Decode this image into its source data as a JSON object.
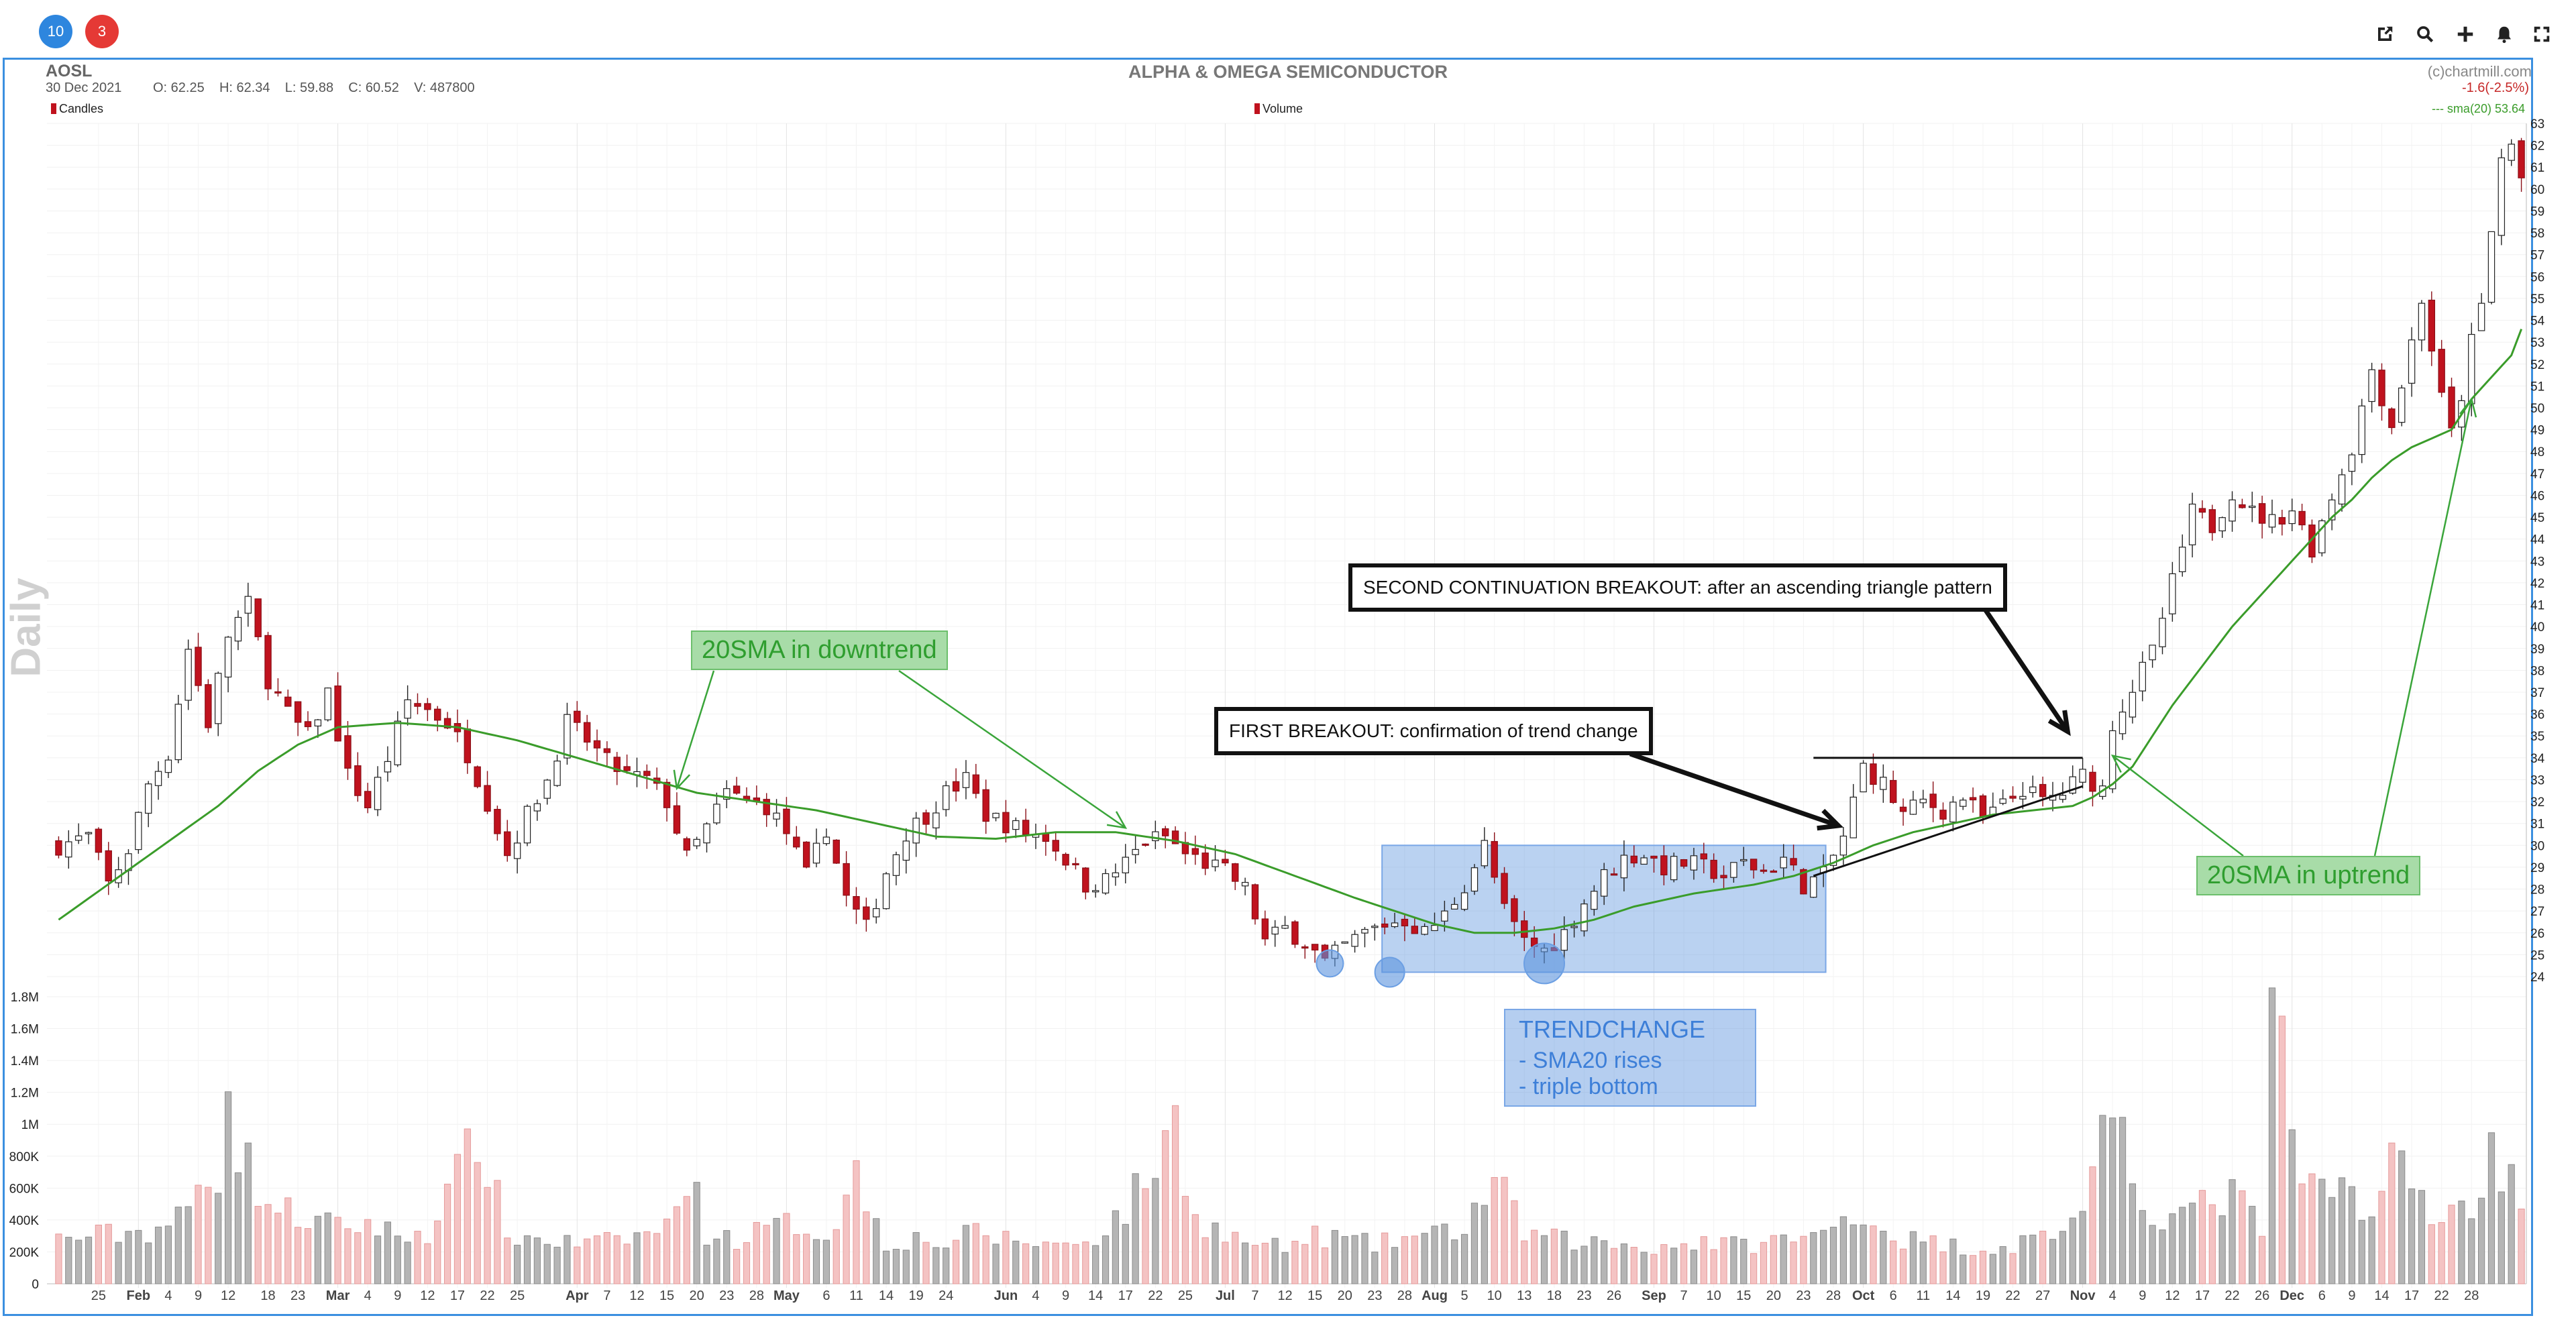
{
  "toolbar": {
    "badges": [
      {
        "label": "10",
        "color": "#2e86de"
      },
      {
        "label": "3",
        "color": "#e53935"
      }
    ],
    "icons": [
      "external-link-icon",
      "search-icon",
      "plus-icon",
      "bell-icon",
      "fullscreen-icon"
    ]
  },
  "header": {
    "symbol": "AOSL",
    "date": "30 Dec 2021",
    "ohlcv": "O: 62.25    H: 62.34    L: 59.88    C: 60.52    V: 487800",
    "title": "ALPHA & OMEGA SEMICONDUCTOR",
    "copyright": "(c)chartmill.com",
    "change": "-1.6(-2.5%)",
    "candles_label": "Candles",
    "volume_label": "Volume",
    "sma_label": "--- sma(20) 53.64",
    "period_label": "Daily"
  },
  "colors": {
    "up": "#ffffff",
    "down": "#c0121e",
    "sma": "#3a9c2a",
    "annotation_green": "#3aa53a",
    "trendchange": "#5a93dd"
  },
  "annotations": {
    "sma_down": "20SMA in downtrend",
    "sma_up": "20SMA in uptrend",
    "first_breakout": "FIRST BREAKOUT: confirmation of trend change",
    "second_breakout": "SECOND CONTINUATION BREAKOUT: after an ascending triangle pattern",
    "trendchange_title": "TRENDCHANGE",
    "trendchange_l1": "- SMA20 rises",
    "trendchange_l2": "- triple bottom"
  },
  "chart_data": {
    "type": "candlestick",
    "price_ylim": [
      24,
      63
    ],
    "price_ticks": [
      24,
      25,
      26,
      27,
      28,
      29,
      30,
      31,
      32,
      33,
      34,
      35,
      36,
      37,
      38,
      39,
      40,
      41,
      42,
      43,
      44,
      45,
      46,
      47,
      48,
      49,
      50,
      51,
      52,
      53,
      54,
      55,
      56,
      57,
      58,
      59,
      60,
      61,
      62,
      63
    ],
    "volume_ylim": [
      0,
      1800000
    ],
    "volume_ticks": [
      {
        "v": 0,
        "label": "0"
      },
      {
        "v": 200000,
        "label": "200K"
      },
      {
        "v": 400000,
        "label": "400K"
      },
      {
        "v": 600000,
        "label": "600K"
      },
      {
        "v": 800000,
        "label": "800K"
      },
      {
        "v": 1000000,
        "label": "1M"
      },
      {
        "v": 1200000,
        "label": "1.2M"
      },
      {
        "v": 1400000,
        "label": "1.4M"
      },
      {
        "v": 1600000,
        "label": "1.6M"
      },
      {
        "v": 1800000,
        "label": "1.8M"
      }
    ],
    "x_labels": [
      {
        "t": "25",
        "i": 4
      },
      {
        "t": "Feb",
        "i": 8,
        "m": true
      },
      {
        "t": "4",
        "i": 11
      },
      {
        "t": "9",
        "i": 14
      },
      {
        "t": "12",
        "i": 17
      },
      {
        "t": "18",
        "i": 21
      },
      {
        "t": "23",
        "i": 24
      },
      {
        "t": "Mar",
        "i": 28,
        "m": true
      },
      {
        "t": "4",
        "i": 31
      },
      {
        "t": "9",
        "i": 34
      },
      {
        "t": "12",
        "i": 37
      },
      {
        "t": "17",
        "i": 40
      },
      {
        "t": "22",
        "i": 43
      },
      {
        "t": "25",
        "i": 46
      },
      {
        "t": "Apr",
        "i": 52,
        "m": true
      },
      {
        "t": "7",
        "i": 55
      },
      {
        "t": "12",
        "i": 58
      },
      {
        "t": "15",
        "i": 61
      },
      {
        "t": "20",
        "i": 64
      },
      {
        "t": "23",
        "i": 67
      },
      {
        "t": "28",
        "i": 70
      },
      {
        "t": "May",
        "i": 73,
        "m": true
      },
      {
        "t": "6",
        "i": 77
      },
      {
        "t": "11",
        "i": 80
      },
      {
        "t": "14",
        "i": 83
      },
      {
        "t": "19",
        "i": 86
      },
      {
        "t": "24",
        "i": 89
      },
      {
        "t": "Jun",
        "i": 95,
        "m": true
      },
      {
        "t": "4",
        "i": 98
      },
      {
        "t": "9",
        "i": 101
      },
      {
        "t": "14",
        "i": 104
      },
      {
        "t": "17",
        "i": 107
      },
      {
        "t": "22",
        "i": 110
      },
      {
        "t": "25",
        "i": 113
      },
      {
        "t": "Jul",
        "i": 117,
        "m": true
      },
      {
        "t": "7",
        "i": 120
      },
      {
        "t": "12",
        "i": 123
      },
      {
        "t": "15",
        "i": 126
      },
      {
        "t": "20",
        "i": 129
      },
      {
        "t": "23",
        "i": 132
      },
      {
        "t": "28",
        "i": 135
      },
      {
        "t": "Aug",
        "i": 138,
        "m": true
      },
      {
        "t": "5",
        "i": 141
      },
      {
        "t": "10",
        "i": 144
      },
      {
        "t": "13",
        "i": 147
      },
      {
        "t": "18",
        "i": 150
      },
      {
        "t": "23",
        "i": 153
      },
      {
        "t": "26",
        "i": 156
      },
      {
        "t": "Sep",
        "i": 160,
        "m": true
      },
      {
        "t": "7",
        "i": 163
      },
      {
        "t": "10",
        "i": 166
      },
      {
        "t": "15",
        "i": 169
      },
      {
        "t": "20",
        "i": 172
      },
      {
        "t": "23",
        "i": 175
      },
      {
        "t": "28",
        "i": 178
      },
      {
        "t": "Oct",
        "i": 181,
        "m": true
      },
      {
        "t": "6",
        "i": 184
      },
      {
        "t": "11",
        "i": 187
      },
      {
        "t": "14",
        "i": 190
      },
      {
        "t": "19",
        "i": 193
      },
      {
        "t": "22",
        "i": 196
      },
      {
        "t": "27",
        "i": 199
      },
      {
        "t": "Nov",
        "i": 203,
        "m": true
      },
      {
        "t": "4",
        "i": 206
      },
      {
        "t": "9",
        "i": 209
      },
      {
        "t": "12",
        "i": 212
      },
      {
        "t": "17",
        "i": 215
      },
      {
        "t": "22",
        "i": 218
      },
      {
        "t": "26",
        "i": 221
      },
      {
        "t": "Dec",
        "i": 224,
        "m": true
      },
      {
        "t": "6",
        "i": 227
      },
      {
        "t": "9",
        "i": 230
      },
      {
        "t": "14",
        "i": 233
      },
      {
        "t": "17",
        "i": 236
      },
      {
        "t": "22",
        "i": 239
      },
      {
        "t": "28",
        "i": 242
      }
    ],
    "close_path": [
      [
        0,
        30.0
      ],
      [
        3,
        30.4
      ],
      [
        5,
        28.2
      ],
      [
        7,
        29.8
      ],
      [
        9,
        32.8
      ],
      [
        11,
        34.2
      ],
      [
        13,
        39.0
      ],
      [
        15,
        35.6
      ],
      [
        17,
        39.6
      ],
      [
        19,
        41.0
      ],
      [
        21,
        37.6
      ],
      [
        23,
        36.0
      ],
      [
        25,
        35.0
      ],
      [
        27,
        37.0
      ],
      [
        29,
        33.2
      ],
      [
        31,
        31.8
      ],
      [
        33,
        34.0
      ],
      [
        35,
        36.6
      ],
      [
        37,
        36.2
      ],
      [
        39,
        35.6
      ],
      [
        41,
        34.2
      ],
      [
        43,
        32.0
      ],
      [
        45,
        29.6
      ],
      [
        47,
        31.4
      ],
      [
        49,
        33.0
      ],
      [
        51,
        35.6
      ],
      [
        53,
        34.8
      ],
      [
        55,
        33.8
      ],
      [
        57,
        33.2
      ],
      [
        59,
        33.0
      ],
      [
        61,
        32.0
      ],
      [
        63,
        29.4
      ],
      [
        65,
        30.8
      ],
      [
        67,
        32.4
      ],
      [
        69,
        32.0
      ],
      [
        71,
        31.8
      ],
      [
        73,
        30.6
      ],
      [
        75,
        28.6
      ],
      [
        77,
        30.8
      ],
      [
        79,
        27.6
      ],
      [
        81,
        26.2
      ],
      [
        83,
        28.8
      ],
      [
        85,
        30.6
      ],
      [
        87,
        31.4
      ],
      [
        89,
        32.4
      ],
      [
        91,
        33.0
      ],
      [
        93,
        31.4
      ],
      [
        95,
        31.0
      ],
      [
        97,
        30.6
      ],
      [
        99,
        30.4
      ],
      [
        101,
        29.4
      ],
      [
        103,
        28.2
      ],
      [
        105,
        28.4
      ],
      [
        107,
        29.2
      ],
      [
        109,
        30.2
      ],
      [
        111,
        30.4
      ],
      [
        113,
        29.6
      ],
      [
        115,
        29.2
      ],
      [
        117,
        28.8
      ],
      [
        119,
        28.0
      ],
      [
        121,
        25.6
      ],
      [
        123,
        26.2
      ],
      [
        125,
        25.6
      ],
      [
        127,
        24.6
      ],
      [
        129,
        25.4
      ],
      [
        131,
        26.0
      ],
      [
        133,
        26.4
      ],
      [
        135,
        26.6
      ],
      [
        137,
        26.0
      ],
      [
        139,
        26.8
      ],
      [
        141,
        28.2
      ],
      [
        143,
        30.0
      ],
      [
        145,
        27.0
      ],
      [
        147,
        25.6
      ],
      [
        149,
        25.2
      ],
      [
        151,
        26.0
      ],
      [
        153,
        27.4
      ],
      [
        155,
        28.6
      ],
      [
        157,
        29.4
      ],
      [
        159,
        29.6
      ],
      [
        161,
        29.0
      ],
      [
        163,
        29.2
      ],
      [
        165,
        29.0
      ],
      [
        167,
        28.6
      ],
      [
        169,
        29.2
      ],
      [
        171,
        28.8
      ],
      [
        173,
        29.4
      ],
      [
        175,
        28.2
      ],
      [
        177,
        28.6
      ],
      [
        179,
        30.4
      ],
      [
        181,
        33.6
      ],
      [
        183,
        32.8
      ],
      [
        185,
        31.4
      ],
      [
        187,
        32.0
      ],
      [
        189,
        31.6
      ],
      [
        191,
        32.2
      ],
      [
        193,
        31.2
      ],
      [
        195,
        31.8
      ],
      [
        197,
        32.6
      ],
      [
        199,
        32.0
      ],
      [
        201,
        32.4
      ],
      [
        203,
        33.2
      ],
      [
        205,
        32.6
      ],
      [
        206,
        35.6
      ],
      [
        208,
        37.2
      ],
      [
        210,
        38.8
      ],
      [
        212,
        42.0
      ],
      [
        214,
        45.2
      ],
      [
        216,
        44.6
      ],
      [
        218,
        46.2
      ],
      [
        220,
        45.2
      ],
      [
        222,
        44.8
      ],
      [
        224,
        45.4
      ],
      [
        226,
        43.6
      ],
      [
        228,
        46.0
      ],
      [
        230,
        48.2
      ],
      [
        232,
        51.8
      ],
      [
        234,
        49.2
      ],
      [
        236,
        53.0
      ],
      [
        237,
        55.0
      ],
      [
        239,
        50.4
      ],
      [
        240,
        48.8
      ],
      [
        241,
        50.6
      ],
      [
        242,
        53.0
      ],
      [
        243,
        54.6
      ],
      [
        244,
        58.0
      ],
      [
        245,
        61.4
      ],
      [
        246,
        62.0
      ],
      [
        247,
        60.5
      ]
    ],
    "sma_path": [
      [
        0,
        26.6
      ],
      [
        8,
        29.2
      ],
      [
        16,
        31.8
      ],
      [
        20,
        33.4
      ],
      [
        24,
        34.6
      ],
      [
        28,
        35.4
      ],
      [
        34,
        35.6
      ],
      [
        40,
        35.4
      ],
      [
        46,
        34.8
      ],
      [
        52,
        34.0
      ],
      [
        58,
        33.2
      ],
      [
        64,
        32.4
      ],
      [
        70,
        32.0
      ],
      [
        76,
        31.6
      ],
      [
        82,
        31.0
      ],
      [
        88,
        30.4
      ],
      [
        94,
        30.3
      ],
      [
        100,
        30.6
      ],
      [
        106,
        30.6
      ],
      [
        112,
        30.2
      ],
      [
        118,
        29.6
      ],
      [
        124,
        28.6
      ],
      [
        130,
        27.6
      ],
      [
        134,
        27.0
      ],
      [
        138,
        26.4
      ],
      [
        142,
        26.0
      ],
      [
        146,
        26.0
      ],
      [
        150,
        26.2
      ],
      [
        154,
        26.6
      ],
      [
        158,
        27.2
      ],
      [
        164,
        27.8
      ],
      [
        170,
        28.2
      ],
      [
        174,
        28.6
      ],
      [
        178,
        29.2
      ],
      [
        182,
        30.0
      ],
      [
        186,
        30.6
      ],
      [
        190,
        31.0
      ],
      [
        194,
        31.4
      ],
      [
        198,
        31.6
      ],
      [
        202,
        31.8
      ],
      [
        204,
        32.2
      ],
      [
        206,
        32.8
      ],
      [
        208,
        33.6
      ],
      [
        210,
        35.0
      ],
      [
        212,
        36.4
      ],
      [
        214,
        37.6
      ],
      [
        216,
        38.8
      ],
      [
        218,
        40.0
      ],
      [
        220,
        41.0
      ],
      [
        222,
        42.0
      ],
      [
        224,
        43.0
      ],
      [
        226,
        44.0
      ],
      [
        228,
        45.0
      ],
      [
        230,
        45.8
      ],
      [
        232,
        46.8
      ],
      [
        234,
        47.6
      ],
      [
        236,
        48.2
      ],
      [
        238,
        48.6
      ],
      [
        240,
        49.0
      ],
      [
        242,
        50.4
      ],
      [
        244,
        51.4
      ],
      [
        246,
        52.4
      ],
      [
        247,
        53.6
      ]
    ],
    "volume_path": [
      [
        0,
        280000
      ],
      [
        5,
        310000
      ],
      [
        9,
        330000
      ],
      [
        12,
        400000
      ],
      [
        16,
        720000
      ],
      [
        17,
        1400000
      ],
      [
        18,
        850000
      ],
      [
        21,
        500000
      ],
      [
        24,
        420000
      ],
      [
        28,
        350000
      ],
      [
        31,
        380000
      ],
      [
        34,
        300000
      ],
      [
        37,
        330000
      ],
      [
        40,
        660000
      ],
      [
        42,
        960000
      ],
      [
        45,
        300000
      ],
      [
        48,
        280000
      ],
      [
        52,
        250000
      ],
      [
        55,
        260000
      ],
      [
        58,
        300000
      ],
      [
        61,
        350000
      ],
      [
        63,
        720000
      ],
      [
        65,
        320000
      ],
      [
        68,
        280000
      ],
      [
        71,
        340000
      ],
      [
        74,
        380000
      ],
      [
        77,
        300000
      ],
      [
        80,
        680000
      ],
      [
        83,
        260000
      ],
      [
        86,
        280000
      ],
      [
        89,
        250000
      ],
      [
        92,
        320000
      ],
      [
        95,
        280000
      ],
      [
        98,
        260000
      ],
      [
        101,
        240000
      ],
      [
        104,
        300000
      ],
      [
        107,
        460000
      ],
      [
        110,
        760000
      ],
      [
        112,
        1000000
      ],
      [
        114,
        420000
      ],
      [
        117,
        300000
      ],
      [
        120,
        250000
      ],
      [
        123,
        220000
      ],
      [
        126,
        300000
      ],
      [
        129,
        280000
      ],
      [
        132,
        240000
      ],
      [
        135,
        290000
      ],
      [
        138,
        300000
      ],
      [
        141,
        360000
      ],
      [
        144,
        650000
      ],
      [
        147,
        320000
      ],
      [
        150,
        280000
      ],
      [
        153,
        260000
      ],
      [
        156,
        250000
      ],
      [
        159,
        230000
      ],
      [
        162,
        240000
      ],
      [
        165,
        270000
      ],
      [
        168,
        240000
      ],
      [
        171,
        260000
      ],
      [
        174,
        280000
      ],
      [
        177,
        300000
      ],
      [
        180,
        480000
      ],
      [
        182,
        380000
      ],
      [
        184,
        300000
      ],
      [
        187,
        260000
      ],
      [
        190,
        240000
      ],
      [
        193,
        220000
      ],
      [
        196,
        240000
      ],
      [
        199,
        300000
      ],
      [
        202,
        380000
      ],
      [
        205,
        860000
      ],
      [
        207,
        840000
      ],
      [
        209,
        500000
      ],
      [
        212,
        420000
      ],
      [
        215,
        480000
      ],
      [
        218,
        560000
      ],
      [
        221,
        340000
      ],
      [
        222,
        1860000
      ],
      [
        223,
        1420000
      ],
      [
        224,
        780000
      ],
      [
        226,
        600000
      ],
      [
        228,
        540000
      ],
      [
        230,
        640000
      ],
      [
        232,
        420000
      ],
      [
        234,
        780000
      ],
      [
        236,
        620000
      ],
      [
        239,
        400000
      ],
      [
        240,
        430000
      ],
      [
        242,
        520000
      ],
      [
        244,
        800000
      ],
      [
        246,
        720000
      ],
      [
        247,
        480000
      ]
    ]
  }
}
